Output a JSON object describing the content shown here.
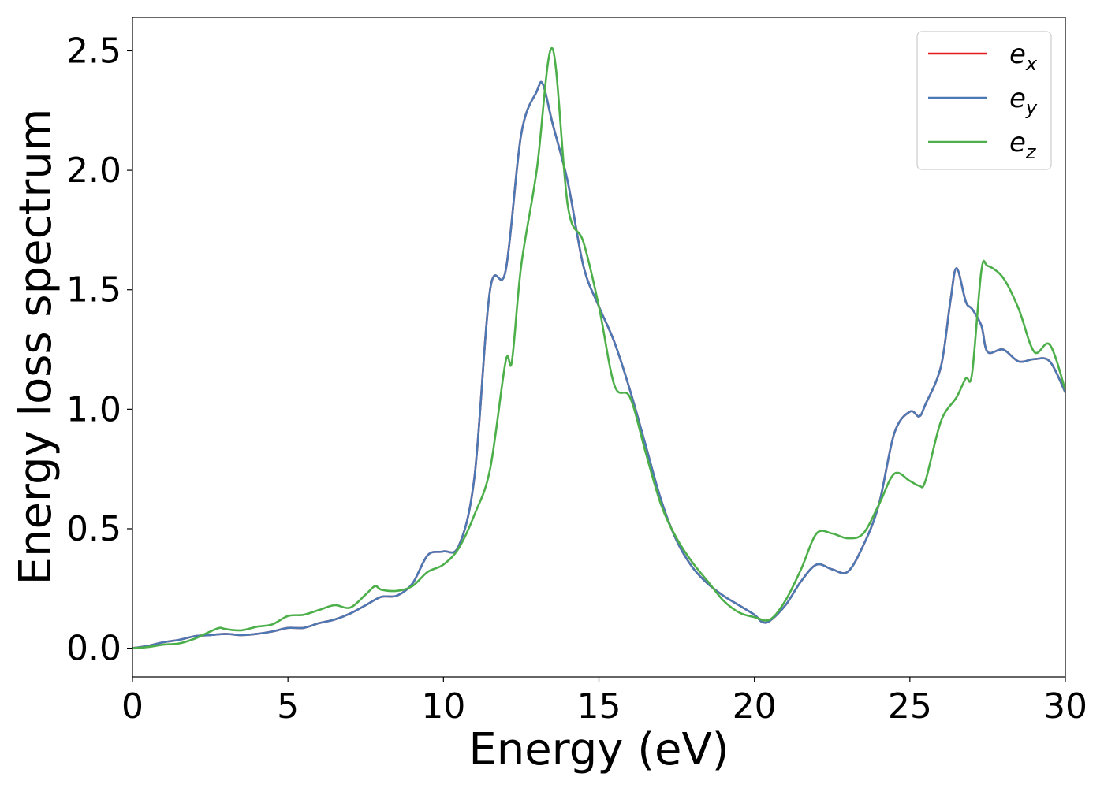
{
  "chart_data": {
    "type": "line",
    "title": "",
    "xlabel": "Energy (eV)",
    "ylabel": "Energy loss spectrum",
    "xlim": [
      0,
      30
    ],
    "ylim": [
      -0.12,
      2.64
    ],
    "xticks": [
      "0",
      "5",
      "10",
      "15",
      "20",
      "25",
      "30"
    ],
    "yticks": [
      "0.0",
      "0.5",
      "1.0",
      "1.5",
      "2.0",
      "2.5"
    ],
    "grid": false,
    "legend_position": "top-right",
    "series": [
      {
        "name": "e_x",
        "label_main": "e",
        "label_sub": "x",
        "color": "#e41a1c",
        "x": [
          0,
          0.5,
          1,
          1.5,
          2,
          2.5,
          3,
          3.5,
          4,
          4.5,
          5,
          5.5,
          6,
          6.5,
          7,
          7.5,
          8,
          8.5,
          9,
          9.5,
          10,
          10.5,
          11,
          11.5,
          12,
          12.5,
          13,
          13.2,
          13.5,
          14,
          14.5,
          15,
          15.5,
          16,
          16.5,
          17,
          17.5,
          18,
          18.5,
          19,
          19.5,
          20,
          20.25,
          20.5,
          21,
          21.5,
          22,
          22.5,
          23,
          23.5,
          24,
          24.5,
          25,
          25.3,
          25.5,
          26,
          26.3,
          26.5,
          26.8,
          27,
          27.3,
          27.5,
          28,
          28.5,
          29,
          29.5,
          30
        ],
        "y": [
          0.0,
          0.01,
          0.025,
          0.035,
          0.05,
          0.055,
          0.06,
          0.055,
          0.06,
          0.07,
          0.085,
          0.085,
          0.105,
          0.12,
          0.145,
          0.18,
          0.215,
          0.22,
          0.27,
          0.39,
          0.405,
          0.43,
          0.72,
          1.5,
          1.58,
          2.15,
          2.33,
          2.36,
          2.2,
          1.95,
          1.6,
          1.43,
          1.28,
          1.08,
          0.85,
          0.62,
          0.45,
          0.34,
          0.27,
          0.22,
          0.18,
          0.14,
          0.11,
          0.115,
          0.18,
          0.28,
          0.35,
          0.33,
          0.32,
          0.43,
          0.6,
          0.9,
          0.99,
          0.97,
          1.02,
          1.18,
          1.45,
          1.59,
          1.45,
          1.42,
          1.35,
          1.24,
          1.25,
          1.2,
          1.21,
          1.2,
          1.07
        ]
      },
      {
        "name": "e_y",
        "label_main": "e",
        "label_sub": "y",
        "color": "#4c78b4",
        "x": [
          0,
          0.5,
          1,
          1.5,
          2,
          2.5,
          3,
          3.5,
          4,
          4.5,
          5,
          5.5,
          6,
          6.5,
          7,
          7.5,
          8,
          8.5,
          9,
          9.5,
          10,
          10.5,
          11,
          11.5,
          12,
          12.5,
          13,
          13.2,
          13.5,
          14,
          14.5,
          15,
          15.5,
          16,
          16.5,
          17,
          17.5,
          18,
          18.5,
          19,
          19.5,
          20,
          20.25,
          20.5,
          21,
          21.5,
          22,
          22.5,
          23,
          23.5,
          24,
          24.5,
          25,
          25.3,
          25.5,
          26,
          26.3,
          26.5,
          26.8,
          27,
          27.3,
          27.5,
          28,
          28.5,
          29,
          29.5,
          30
        ],
        "y": [
          0.0,
          0.01,
          0.025,
          0.035,
          0.05,
          0.055,
          0.06,
          0.055,
          0.06,
          0.07,
          0.085,
          0.085,
          0.105,
          0.12,
          0.145,
          0.18,
          0.215,
          0.22,
          0.27,
          0.39,
          0.405,
          0.43,
          0.72,
          1.5,
          1.58,
          2.15,
          2.33,
          2.36,
          2.2,
          1.95,
          1.6,
          1.43,
          1.28,
          1.08,
          0.85,
          0.62,
          0.45,
          0.34,
          0.27,
          0.22,
          0.18,
          0.14,
          0.11,
          0.115,
          0.18,
          0.28,
          0.35,
          0.33,
          0.32,
          0.43,
          0.6,
          0.9,
          0.99,
          0.97,
          1.02,
          1.18,
          1.45,
          1.59,
          1.45,
          1.42,
          1.35,
          1.24,
          1.25,
          1.2,
          1.21,
          1.2,
          1.07
        ]
      },
      {
        "name": "e_z",
        "label_main": "e",
        "label_sub": "z",
        "color": "#4daf4a",
        "x": [
          0,
          0.5,
          1,
          1.5,
          2,
          2.5,
          2.8,
          3,
          3.5,
          4,
          4.5,
          5,
          5.5,
          6,
          6.5,
          7,
          7.5,
          7.8,
          8,
          8.5,
          9,
          9.5,
          10,
          10.5,
          11,
          11.5,
          12,
          12.2,
          12.5,
          13,
          13.5,
          14,
          14.5,
          15,
          15.5,
          16,
          16.5,
          17,
          17.5,
          18,
          18.5,
          19,
          19.5,
          20,
          20.5,
          21,
          21.5,
          22,
          22.5,
          23,
          23.5,
          24,
          24.5,
          25,
          25.3,
          25.5,
          26,
          26.5,
          26.8,
          27,
          27.3,
          27.5,
          28,
          28.5,
          29,
          29.5,
          30
        ],
        "y": [
          0.0,
          0.005,
          0.015,
          0.02,
          0.04,
          0.07,
          0.085,
          0.08,
          0.075,
          0.09,
          0.1,
          0.135,
          0.14,
          0.16,
          0.18,
          0.17,
          0.225,
          0.26,
          0.245,
          0.24,
          0.26,
          0.32,
          0.35,
          0.42,
          0.56,
          0.75,
          1.2,
          1.2,
          1.6,
          2.0,
          2.51,
          1.85,
          1.7,
          1.43,
          1.1,
          1.05,
          0.82,
          0.6,
          0.46,
          0.36,
          0.28,
          0.2,
          0.15,
          0.13,
          0.12,
          0.2,
          0.33,
          0.48,
          0.48,
          0.46,
          0.48,
          0.6,
          0.73,
          0.7,
          0.68,
          0.7,
          0.95,
          1.05,
          1.13,
          1.15,
          1.58,
          1.6,
          1.55,
          1.42,
          1.24,
          1.27,
          1.08
        ]
      }
    ]
  }
}
